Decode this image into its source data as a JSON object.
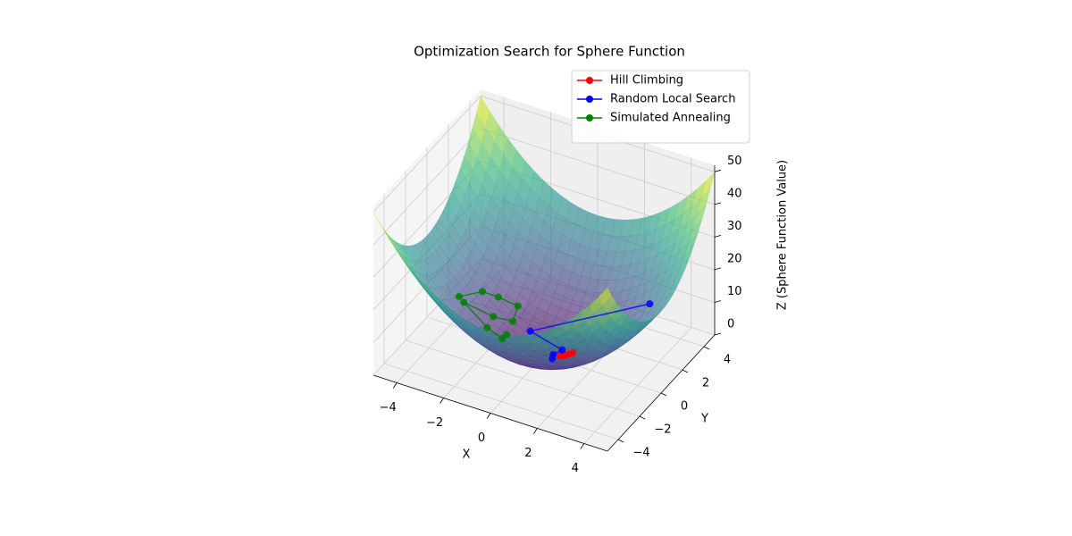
{
  "chart_data": {
    "type": "surface3d",
    "title": "Optimization Search for Sphere Function",
    "x_label": "X",
    "y_label": "Y",
    "z_label": "Z (Sphere Function Value)",
    "xlim": [
      -5,
      5
    ],
    "ylim": [
      -5,
      5
    ],
    "zlim": [
      0,
      52
    ],
    "xticks": [
      {
        "value": -4,
        "label": "−4"
      },
      {
        "value": -2,
        "label": "−2"
      },
      0,
      2,
      4
    ],
    "yticks": [
      {
        "value": -4,
        "label": "−4"
      },
      {
        "value": -2,
        "label": "−2"
      },
      0,
      2,
      4
    ],
    "zticks": [
      0,
      10,
      20,
      30,
      40,
      50
    ],
    "grid": true,
    "legend": "upper right",
    "series": [
      {
        "name": "Hill Climbing",
        "color": "#ff0000",
        "x": [
          1.0,
          0.9,
          0.8,
          0.7,
          0.6
        ],
        "y": [
          0.5,
          0.4,
          0.3,
          0.25,
          0.2
        ],
        "z": [
          1.25,
          0.97,
          0.73,
          0.55,
          0.4
        ]
      },
      {
        "name": "Random Local Search",
        "color": "#0000ff",
        "x": [
          3.6,
          -1.0,
          0.5,
          0.3,
          0.4
        ],
        "y": [
          2.0,
          0.9,
          0.6,
          0.2,
          -0.1
        ],
        "z": [
          16.96,
          1.81,
          0.61,
          0.13,
          0.17
        ]
      },
      {
        "name": "Simulated Annealing",
        "color": "#008000",
        "x": [
          -3.4,
          -3.0,
          -2.5,
          -1.8,
          -1.7,
          -2.3,
          -3.2,
          -2.2,
          -1.6,
          -1.6
        ],
        "y": [
          -0.5,
          0.8,
          1.2,
          1.5,
          0.8,
          0.3,
          -0.5,
          -0.5,
          -0.4,
          0.0
        ],
        "z": [
          11.81,
          9.64,
          7.69,
          5.49,
          3.53,
          5.38,
          10.49,
          5.09,
          2.72,
          2.56
        ]
      }
    ]
  }
}
